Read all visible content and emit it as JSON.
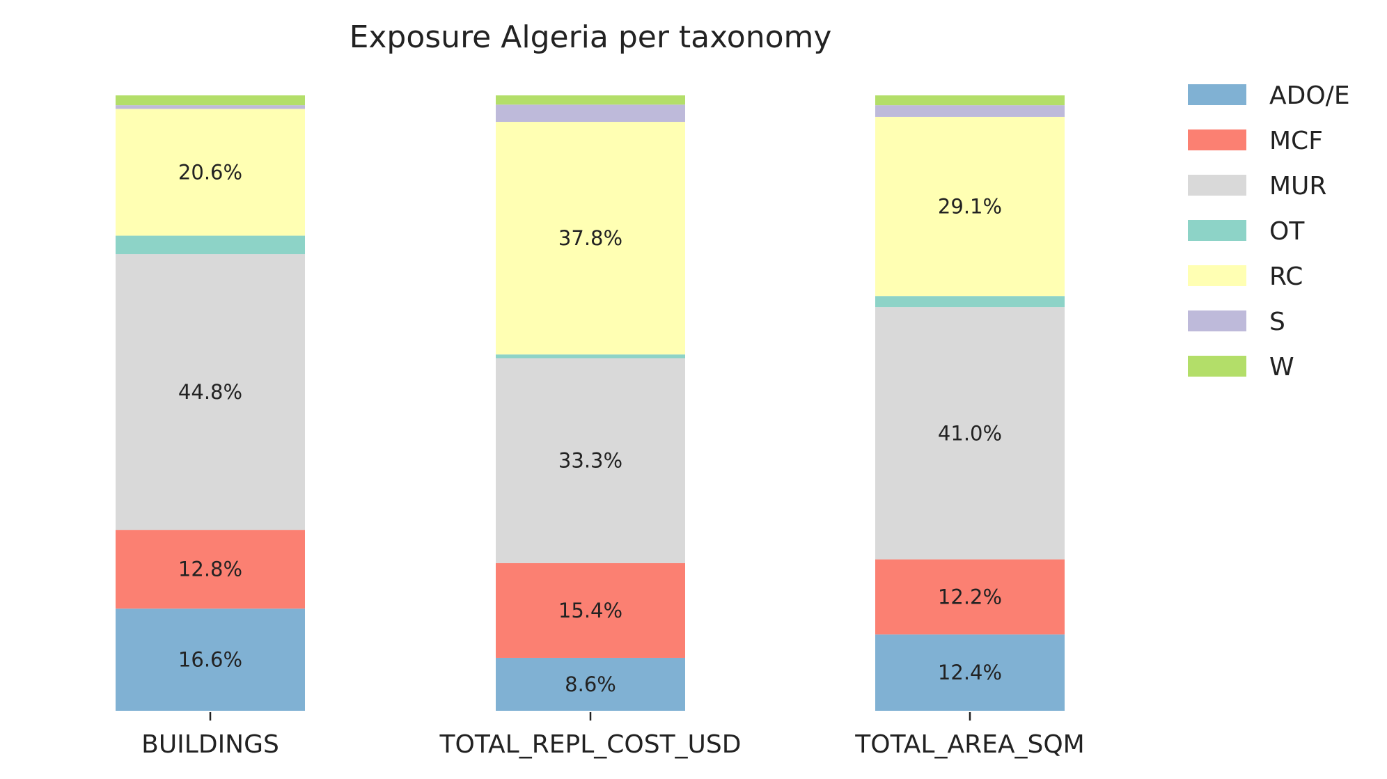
{
  "chart_data": {
    "type": "bar",
    "stacked": true,
    "normalized": true,
    "title": "Exposure Algeria per taxonomy",
    "xlabel": "",
    "ylabel": "",
    "ylim": [
      0,
      100
    ],
    "grid": false,
    "legend_position": "top-right",
    "categories": [
      "BUILDINGS",
      "TOTAL_REPL_COST_USD",
      "TOTAL_AREA_SQM"
    ],
    "series": [
      {
        "name": "ADO/E",
        "color": "#80b1d3",
        "values": [
          16.6,
          8.6,
          12.4
        ],
        "labels": [
          "16.6%",
          "8.6%",
          "12.4%"
        ]
      },
      {
        "name": "MCF",
        "color": "#fb8072",
        "values": [
          12.8,
          15.4,
          12.2
        ],
        "labels": [
          "12.8%",
          "15.4%",
          "12.2%"
        ]
      },
      {
        "name": "MUR",
        "color": "#d9d9d9",
        "values": [
          44.8,
          33.3,
          41.0
        ],
        "labels": [
          "44.8%",
          "33.3%",
          "41.0%"
        ]
      },
      {
        "name": "OT",
        "color": "#8dd3c7",
        "values": [
          3.0,
          0.6,
          1.8
        ],
        "labels": [
          "",
          "",
          ""
        ]
      },
      {
        "name": "RC",
        "color": "#ffffb3",
        "values": [
          20.6,
          37.8,
          29.1
        ],
        "labels": [
          "20.6%",
          "37.8%",
          "29.1%"
        ]
      },
      {
        "name": "S",
        "color": "#bebada",
        "values": [
          0.6,
          2.8,
          1.9
        ],
        "labels": [
          "",
          "",
          ""
        ]
      },
      {
        "name": "W",
        "color": "#b3de69",
        "values": [
          1.6,
          1.5,
          1.6
        ],
        "labels": [
          "",
          "",
          ""
        ]
      }
    ]
  }
}
